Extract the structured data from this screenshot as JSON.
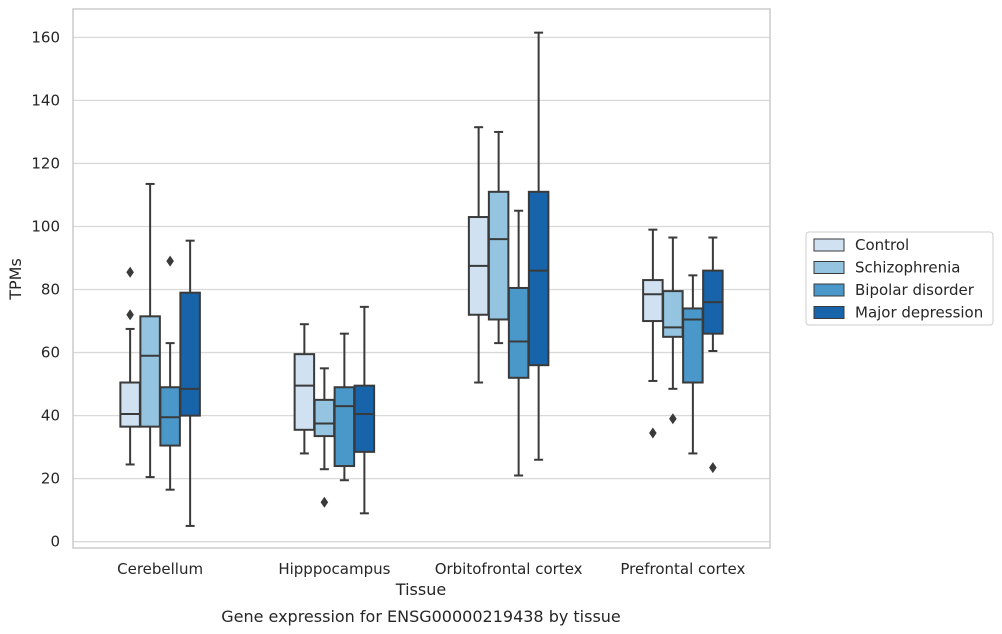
{
  "chart_data": {
    "type": "box",
    "title": "",
    "caption": "Gene expression for ENSG00000219438 by tissue",
    "xlabel": "Tissue",
    "ylabel": "TPMs",
    "ylim": [
      -2,
      169
    ],
    "yticks": [
      0,
      20,
      40,
      60,
      80,
      100,
      120,
      140,
      160
    ],
    "grid": "horizontal",
    "legend_position": "right",
    "categories": [
      "Cerebellum",
      "Hipppocampus",
      "Orbitofrontal cortex",
      "Prefrontal cortex"
    ],
    "colors": {
      "Control": "#d0e1f2",
      "Schizophrenia": "#94c4df",
      "Bipolar disorder": "#4a98c9",
      "Major depression": "#1764ab",
      "outline": "#3a3a3a",
      "grid": "#d9d9d9",
      "axes_edge": "#cccccc"
    },
    "series": [
      {
        "name": "Control",
        "boxes": [
          {
            "whislo": 24.5,
            "q1": 36.5,
            "med": 40.5,
            "q3": 50.5,
            "whishi": 67.5,
            "fliers": [
              72,
              85.5
            ]
          },
          {
            "whislo": 28,
            "q1": 35.5,
            "med": 49.5,
            "q3": 59.5,
            "whishi": 69,
            "fliers": []
          },
          {
            "whislo": 50.5,
            "q1": 72,
            "med": 87.5,
            "q3": 103,
            "whishi": 131.5,
            "fliers": []
          },
          {
            "whislo": 51,
            "q1": 70,
            "med": 78.5,
            "q3": 83,
            "whishi": 99,
            "fliers": [
              34.5
            ]
          }
        ]
      },
      {
        "name": "Schizophrenia",
        "boxes": [
          {
            "whislo": 20.5,
            "q1": 36.5,
            "med": 59,
            "q3": 71.5,
            "whishi": 113.5,
            "fliers": []
          },
          {
            "whislo": 23,
            "q1": 33.5,
            "med": 37.5,
            "q3": 45,
            "whishi": 55,
            "fliers": [
              12.5
            ]
          },
          {
            "whislo": 63,
            "q1": 70.5,
            "med": 96,
            "q3": 111,
            "whishi": 130,
            "fliers": []
          },
          {
            "whislo": 48.5,
            "q1": 65,
            "med": 68,
            "q3": 79.5,
            "whishi": 96.5,
            "fliers": [
              39
            ]
          }
        ]
      },
      {
        "name": "Bipolar disorder",
        "boxes": [
          {
            "whislo": 16.5,
            "q1": 30.5,
            "med": 39.5,
            "q3": 49,
            "whishi": 63,
            "fliers": [
              89
            ]
          },
          {
            "whislo": 19.5,
            "q1": 24,
            "med": 43,
            "q3": 49,
            "whishi": 66,
            "fliers": []
          },
          {
            "whislo": 21,
            "q1": 52,
            "med": 63.5,
            "q3": 80.5,
            "whishi": 105,
            "fliers": []
          },
          {
            "whislo": 28,
            "q1": 50.5,
            "med": 70.5,
            "q3": 74,
            "whishi": 84.5,
            "fliers": []
          }
        ]
      },
      {
        "name": "Major depression",
        "boxes": [
          {
            "whislo": 5,
            "q1": 40,
            "med": 48.5,
            "q3": 79,
            "whishi": 95.5,
            "fliers": []
          },
          {
            "whislo": 9,
            "q1": 28.5,
            "med": 40.5,
            "q3": 49.5,
            "whishi": 74.5,
            "fliers": []
          },
          {
            "whislo": 26,
            "q1": 56,
            "med": 86,
            "q3": 111,
            "whishi": 161.5,
            "fliers": []
          },
          {
            "whislo": 60.5,
            "q1": 66,
            "med": 76,
            "q3": 86,
            "whishi": 96.5,
            "fliers": [
              23.5
            ]
          }
        ]
      }
    ]
  }
}
